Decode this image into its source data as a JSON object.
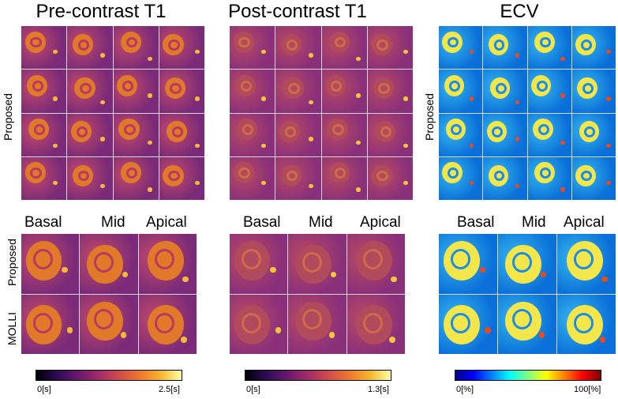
{
  "columns": [
    {
      "title": "Pre-contrast T1",
      "colorbar": {
        "min_label": "0[s]",
        "max_label": "2.5[s]"
      },
      "colors": {
        "bg": "#7a2a78",
        "tissue": "#c24a6a",
        "heart": "#e07a2a",
        "ring": "#b83a5f",
        "bright": "#f6b93a"
      }
    },
    {
      "title": "Post-contrast T1",
      "colorbar": {
        "min_label": "0[s]",
        "max_label": "1.3[s]"
      },
      "colors": {
        "bg": "#8a2f7a",
        "tissue": "#b84a63",
        "heart": "#b04a5c",
        "ring": "#d06a48",
        "bright": "#f4c63a"
      }
    },
    {
      "title": "ECV",
      "colorbar": {
        "min_label": "0[%]",
        "max_label": "100[%]"
      },
      "colors": {
        "bg": "#0a6fd8",
        "tissue": "#35b5ee",
        "heart": "#f3e64a",
        "ring": "#1a8de8",
        "bright": "#e84a1f"
      }
    }
  ],
  "top_section": {
    "row_label": "Proposed"
  },
  "bottom_section": {
    "slice_labels": [
      "Basal",
      "Mid",
      "Apical"
    ],
    "row_labels": [
      "Proposed",
      "MOLLI"
    ]
  }
}
